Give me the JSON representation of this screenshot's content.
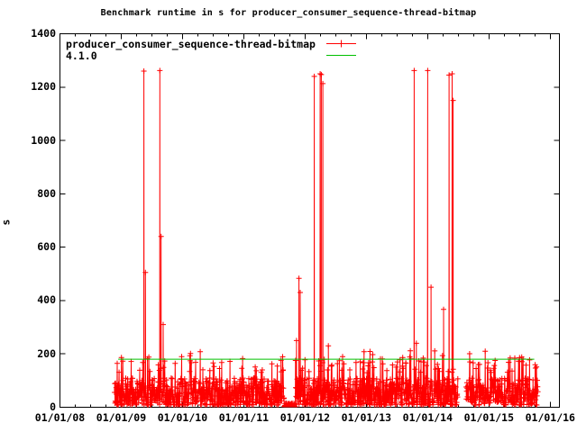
{
  "chart_data": {
    "type": "line",
    "title": "Benchmark runtime in s for producer_consumer_sequence-thread-bitmap",
    "ylabel": "s",
    "x_tick_labels": [
      "01/01/08",
      "01/01/09",
      "01/01/10",
      "01/01/11",
      "01/01/12",
      "01/01/13",
      "01/01/14",
      "01/01/15",
      "01/01/16"
    ],
    "y_tick_labels": [
      "0",
      "200",
      "400",
      "600",
      "800",
      "1000",
      "1200",
      "1400"
    ],
    "x_range_years": [
      2008.0,
      2016.15
    ],
    "y_range": [
      0,
      1400
    ],
    "y_tick_step": 200,
    "grid": "off",
    "legend_position": "top-left-inside",
    "colors": {
      "series": "#ff0000",
      "reference": "#00c000",
      "axis": "#000000"
    },
    "series": [
      {
        "name": "producer_consumer_sequence-thread-bitmap",
        "color": "#ff0000",
        "marker": "plus",
        "style": "linespoints",
        "noise_band": {
          "start": 2008.89,
          "end": 2015.8,
          "step_days": 1.6,
          "seed": 42,
          "typical_min": 8,
          "typical_max": 110,
          "peak_min": 128,
          "peak_max": 190,
          "peak_chance": 0.095,
          "rare_peak_min": 192,
          "rare_peak_max": 215,
          "rare_peak_chance": 0.012,
          "low_segments": [
            [
              2011.66,
              2011.84,
              14
            ]
          ],
          "gaps": [
            [
              2014.495,
              2014.625
            ]
          ]
        },
        "outliers": [
          [
            2009.37,
            1260
          ],
          [
            2009.395,
            505
          ],
          [
            2009.63,
            1262
          ],
          [
            2009.65,
            640
          ],
          [
            2009.685,
            310
          ],
          [
            2011.86,
            250
          ],
          [
            2011.9,
            483
          ],
          [
            2011.92,
            430
          ],
          [
            2012.15,
            1240
          ],
          [
            2012.245,
            1250
          ],
          [
            2012.265,
            1247
          ],
          [
            2012.29,
            1213
          ],
          [
            2012.38,
            230
          ],
          [
            2013.78,
            1262
          ],
          [
            2013.815,
            240
          ],
          [
            2014.0,
            1262
          ],
          [
            2014.055,
            450
          ],
          [
            2014.26,
            367
          ],
          [
            2014.35,
            1245
          ],
          [
            2014.4,
            1250
          ],
          [
            2014.415,
            1150
          ]
        ]
      },
      {
        "name": "4.1.0",
        "color": "#00c000",
        "style": "hline",
        "value": 180,
        "x_start": 2008.95,
        "x_end": 2015.74
      }
    ]
  }
}
